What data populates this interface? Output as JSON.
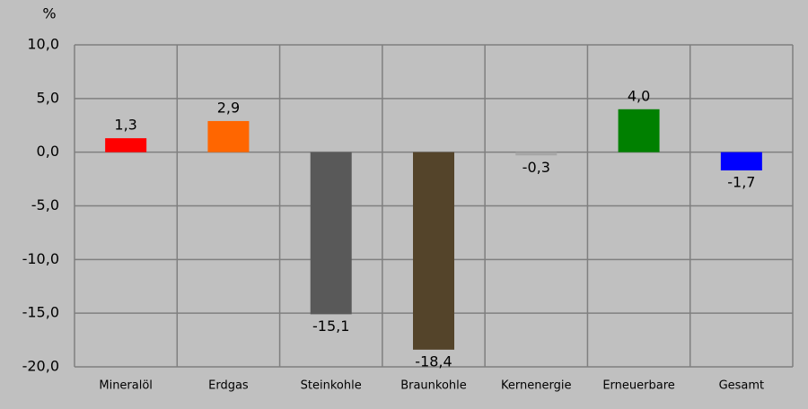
{
  "chart_data": {
    "type": "bar",
    "y_label": "%",
    "categories": [
      "Mineralöl",
      "Erdgas",
      "Steinkohle",
      "Braunkohle",
      "Kernenergie",
      "Erneuerbare",
      "Gesamt"
    ],
    "values": [
      1.3,
      2.9,
      -15.1,
      -18.4,
      -0.3,
      4.0,
      -1.7
    ],
    "value_labels": [
      "1,3",
      "2,9",
      "-15,1",
      "-18,4",
      "-0,3",
      "4,0",
      "-1,7"
    ],
    "colors": [
      "#ff0000",
      "#ff6600",
      "#595959",
      "#54442a",
      "#a6a6a6",
      "#008000",
      "#0000ff"
    ],
    "ylim": [
      -20,
      10
    ],
    "yticks": [
      {
        "value": -20,
        "label": "-20,0"
      },
      {
        "value": -15,
        "label": "-15,0"
      },
      {
        "value": -10,
        "label": "-10,0"
      },
      {
        "value": -5,
        "label": "-5,0"
      },
      {
        "value": 0,
        "label": "0,0"
      },
      {
        "value": 5,
        "label": "5,0"
      },
      {
        "value": 10,
        "label": "10,0"
      }
    ],
    "grid": true
  }
}
